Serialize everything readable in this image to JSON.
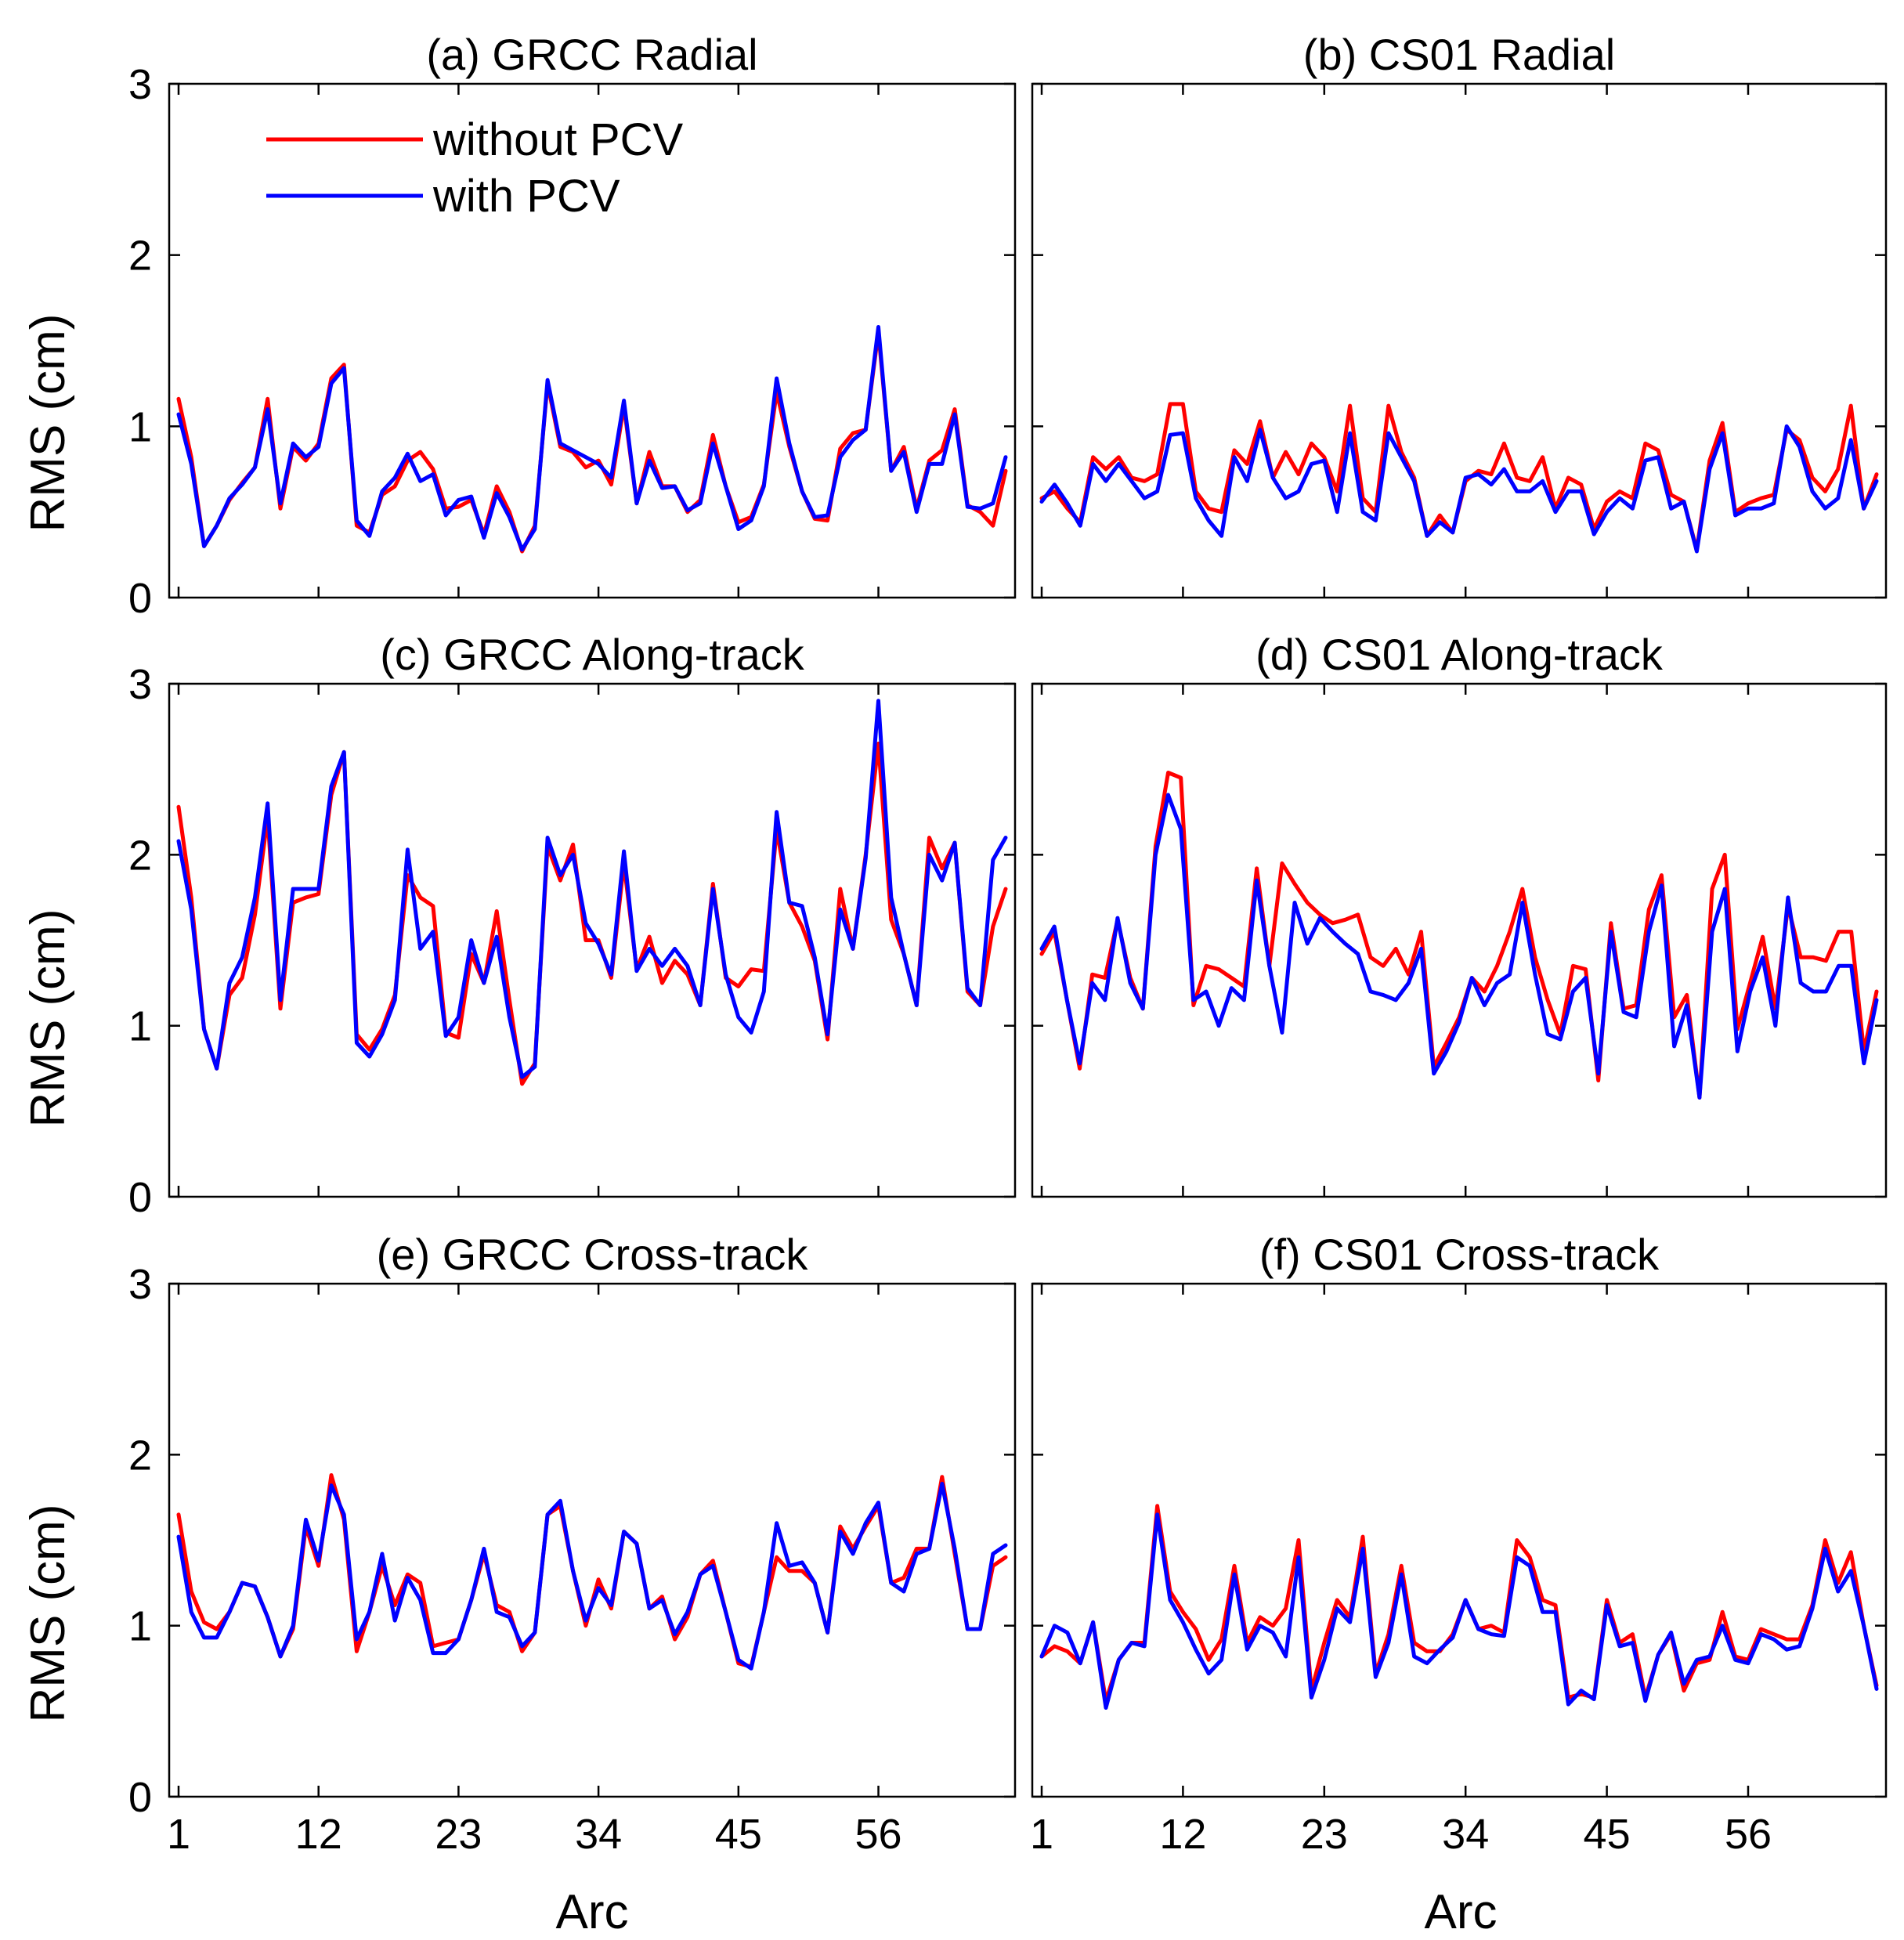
{
  "legend": {
    "entries": [
      "without PCV",
      "with PCV"
    ]
  },
  "colors": {
    "without": "#ff0000",
    "with": "#0000ff"
  },
  "chart_data": [
    {
      "type": "line",
      "id": "a",
      "title": "(a) GRCC Radial",
      "xlabel": "",
      "ylabel": "RMS (cm)",
      "ylim": [
        0,
        3
      ],
      "xlim": [
        1,
        66
      ],
      "yticks": [
        "0",
        "1",
        "2",
        "3"
      ],
      "xticks": [
        "",
        "",
        "",
        "",
        "",
        ""
      ],
      "series": [
        {
          "name": "without PCV",
          "values": [
            1.16,
            0.82,
            0.3,
            0.42,
            0.57,
            0.67,
            0.76,
            1.16,
            0.52,
            0.88,
            0.8,
            0.9,
            1.28,
            1.36,
            0.42,
            0.38,
            0.6,
            0.65,
            0.8,
            0.85,
            0.75,
            0.52,
            0.53,
            0.57,
            0.37,
            0.65,
            0.5,
            0.27,
            0.42,
            1.25,
            0.88,
            0.85,
            0.76,
            0.8,
            0.66,
            1.12,
            0.55,
            0.85,
            0.65,
            0.65,
            0.5,
            0.57,
            0.95,
            0.65,
            0.44,
            0.47,
            0.66,
            1.2,
            0.88,
            0.62,
            0.46,
            0.45,
            0.87,
            0.96,
            0.98,
            1.55,
            0.74,
            0.88,
            0.52,
            0.8,
            0.86,
            1.1,
            0.54,
            0.5,
            0.42,
            0.74
          ]
        },
        {
          "name": "with PCV",
          "values": [
            1.07,
            0.78,
            0.3,
            0.42,
            0.58,
            0.66,
            0.76,
            1.1,
            0.55,
            0.9,
            0.82,
            0.88,
            1.25,
            1.34,
            0.45,
            0.36,
            0.62,
            0.7,
            0.84,
            0.68,
            0.72,
            0.48,
            0.57,
            0.59,
            0.35,
            0.61,
            0.47,
            0.28,
            0.4,
            1.27,
            0.9,
            0.86,
            0.82,
            0.78,
            0.7,
            1.15,
            0.55,
            0.8,
            0.64,
            0.65,
            0.51,
            0.55,
            0.9,
            0.65,
            0.4,
            0.45,
            0.65,
            1.28,
            0.9,
            0.62,
            0.47,
            0.48,
            0.82,
            0.92,
            0.98,
            1.58,
            0.74,
            0.85,
            0.5,
            0.78,
            0.78,
            1.07,
            0.53,
            0.52,
            0.55,
            0.82
          ]
        }
      ]
    },
    {
      "type": "line",
      "id": "b",
      "title": "(b) CS01 Radial",
      "xlabel": "",
      "ylabel": "",
      "ylim": [
        0,
        3
      ],
      "xlim": [
        1,
        66
      ],
      "yticks": [
        "",
        "",
        "",
        ""
      ],
      "xticks": [
        "",
        "",
        "",
        "",
        "",
        ""
      ],
      "series": [
        {
          "name": "without PCV",
          "values": [
            0.58,
            0.62,
            0.52,
            0.44,
            0.82,
            0.75,
            0.82,
            0.7,
            0.68,
            0.72,
            1.13,
            1.13,
            0.62,
            0.52,
            0.5,
            0.86,
            0.78,
            1.03,
            0.7,
            0.85,
            0.72,
            0.9,
            0.82,
            0.62,
            1.12,
            0.58,
            0.5,
            1.12,
            0.85,
            0.7,
            0.36,
            0.48,
            0.38,
            0.68,
            0.74,
            0.72,
            0.9,
            0.7,
            0.68,
            0.82,
            0.52,
            0.7,
            0.66,
            0.4,
            0.56,
            0.62,
            0.58,
            0.9,
            0.86,
            0.6,
            0.56,
            0.28,
            0.8,
            1.02,
            0.5,
            0.55,
            0.58,
            0.6,
            0.98,
            0.92,
            0.7,
            0.62,
            0.75,
            1.12,
            0.52,
            0.72
          ]
        },
        {
          "name": "with PCV",
          "values": [
            0.56,
            0.66,
            0.55,
            0.42,
            0.78,
            0.68,
            0.78,
            0.68,
            0.58,
            0.62,
            0.95,
            0.96,
            0.58,
            0.45,
            0.36,
            0.82,
            0.68,
            0.98,
            0.7,
            0.58,
            0.62,
            0.78,
            0.8,
            0.5,
            0.96,
            0.5,
            0.45,
            0.96,
            0.82,
            0.68,
            0.36,
            0.44,
            0.38,
            0.7,
            0.72,
            0.66,
            0.75,
            0.62,
            0.62,
            0.68,
            0.5,
            0.62,
            0.62,
            0.37,
            0.5,
            0.58,
            0.52,
            0.8,
            0.82,
            0.52,
            0.56,
            0.27,
            0.75,
            0.96,
            0.48,
            0.52,
            0.52,
            0.55,
            1.0,
            0.88,
            0.62,
            0.52,
            0.58,
            0.92,
            0.52,
            0.68
          ]
        }
      ]
    },
    {
      "type": "line",
      "id": "c",
      "title": "(c) GRCC Along-track",
      "xlabel": "",
      "ylabel": "RMS (cm)",
      "ylim": [
        0,
        3
      ],
      "xlim": [
        1,
        66
      ],
      "yticks": [
        "0",
        "1",
        "2",
        "3"
      ],
      "xticks": [
        "",
        "",
        "",
        "",
        "",
        ""
      ],
      "series": [
        {
          "name": "without PCV",
          "values": [
            2.28,
            1.75,
            0.98,
            0.75,
            1.18,
            1.28,
            1.65,
            2.22,
            1.1,
            1.72,
            1.75,
            1.77,
            2.35,
            2.6,
            0.95,
            0.86,
            0.98,
            1.18,
            1.88,
            1.75,
            1.7,
            0.96,
            0.93,
            1.42,
            1.25,
            1.67,
            1.15,
            0.66,
            0.78,
            2.05,
            1.85,
            2.06,
            1.5,
            1.5,
            1.28,
            1.95,
            1.33,
            1.52,
            1.25,
            1.38,
            1.3,
            1.12,
            1.83,
            1.28,
            1.23,
            1.33,
            1.32,
            2.15,
            1.72,
            1.58,
            1.38,
            0.92,
            1.8,
            1.45,
            2.0,
            2.65,
            1.62,
            1.42,
            1.12,
            2.1,
            1.92,
            2.07,
            1.2,
            1.12,
            1.58,
            1.8
          ]
        },
        {
          "name": "with PCV",
          "values": [
            2.08,
            1.68,
            0.98,
            0.75,
            1.25,
            1.4,
            1.75,
            2.3,
            1.15,
            1.8,
            1.8,
            1.8,
            2.4,
            2.6,
            0.9,
            0.82,
            0.95,
            1.15,
            2.03,
            1.45,
            1.55,
            0.94,
            1.05,
            1.5,
            1.25,
            1.52,
            1.05,
            0.7,
            0.76,
            2.1,
            1.88,
            2.0,
            1.6,
            1.48,
            1.3,
            2.02,
            1.32,
            1.45,
            1.35,
            1.45,
            1.35,
            1.12,
            1.8,
            1.3,
            1.05,
            0.96,
            1.2,
            2.25,
            1.72,
            1.7,
            1.4,
            0.95,
            1.68,
            1.45,
            1.98,
            2.9,
            1.75,
            1.42,
            1.12,
            2.0,
            1.85,
            2.07,
            1.22,
            1.12,
            1.97,
            2.1
          ]
        }
      ]
    },
    {
      "type": "line",
      "id": "d",
      "title": "(d) CS01 Along-track",
      "xlabel": "",
      "ylabel": "",
      "ylim": [
        0,
        3
      ],
      "xlim": [
        1,
        66
      ],
      "yticks": [
        "",
        "",
        "",
        ""
      ],
      "xticks": [
        "",
        "",
        "",
        "",
        "",
        ""
      ],
      "series": [
        {
          "name": "without PCV",
          "values": [
            1.42,
            1.55,
            1.15,
            0.75,
            1.3,
            1.28,
            1.62,
            1.28,
            1.1,
            2.05,
            2.48,
            2.45,
            1.12,
            1.35,
            1.33,
            1.28,
            1.23,
            1.92,
            1.35,
            1.95,
            1.83,
            1.72,
            1.65,
            1.6,
            1.62,
            1.65,
            1.4,
            1.35,
            1.45,
            1.3,
            1.55,
            0.76,
            0.9,
            1.05,
            1.28,
            1.2,
            1.35,
            1.55,
            1.8,
            1.4,
            1.15,
            0.95,
            1.35,
            1.33,
            0.68,
            1.6,
            1.1,
            1.12,
            1.68,
            1.88,
            1.05,
            1.18,
            0.58,
            1.8,
            2.0,
            0.98,
            1.25,
            1.52,
            1.1,
            1.7,
            1.4,
            1.4,
            1.38,
            1.55,
            1.55,
            0.85,
            1.2
          ]
        },
        {
          "name": "with PCV",
          "values": [
            1.45,
            1.58,
            1.15,
            0.78,
            1.25,
            1.15,
            1.63,
            1.25,
            1.1,
            2.0,
            2.35,
            2.15,
            1.15,
            1.2,
            1.0,
            1.22,
            1.15,
            1.85,
            1.35,
            0.96,
            1.72,
            1.48,
            1.63,
            1.55,
            1.48,
            1.42,
            1.2,
            1.18,
            1.15,
            1.25,
            1.45,
            0.72,
            0.85,
            1.02,
            1.28,
            1.12,
            1.25,
            1.3,
            1.72,
            1.3,
            0.95,
            0.92,
            1.2,
            1.28,
            0.72,
            1.55,
            1.08,
            1.05,
            1.55,
            1.82,
            0.88,
            1.12,
            0.58,
            1.55,
            1.8,
            0.85,
            1.2,
            1.4,
            1.0,
            1.75,
            1.25,
            1.2,
            1.2,
            1.35,
            1.35,
            0.78,
            1.15
          ]
        }
      ]
    },
    {
      "type": "line",
      "id": "e",
      "title": "(e) GRCC Cross-track",
      "xlabel": "Arc",
      "ylabel": "RMS (cm)",
      "ylim": [
        0,
        3
      ],
      "xlim": [
        1,
        66
      ],
      "yticks": [
        "0",
        "1",
        "2",
        "3"
      ],
      "xticks": [
        "1",
        "12",
        "23",
        "34",
        "45",
        "56"
      ],
      "series": [
        {
          "name": "without PCV",
          "values": [
            1.65,
            1.2,
            1.02,
            0.98,
            1.08,
            1.25,
            1.23,
            1.05,
            0.82,
            0.98,
            1.58,
            1.35,
            1.88,
            1.62,
            0.85,
            1.08,
            1.35,
            1.12,
            1.3,
            1.25,
            0.88,
            0.9,
            0.92,
            1.15,
            1.42,
            1.12,
            1.08,
            0.85,
            0.96,
            1.65,
            1.7,
            1.32,
            1.0,
            1.27,
            1.1,
            1.55,
            1.48,
            1.1,
            1.17,
            0.92,
            1.05,
            1.3,
            1.38,
            1.08,
            0.78,
            0.76,
            1.08,
            1.4,
            1.32,
            1.32,
            1.25,
            0.96,
            1.58,
            1.45,
            1.58,
            1.7,
            1.25,
            1.28,
            1.45,
            1.45,
            1.87,
            1.42,
            0.98,
            0.98,
            1.35,
            1.4
          ]
        },
        {
          "name": "with PCV",
          "values": [
            1.52,
            1.08,
            0.93,
            0.93,
            1.08,
            1.25,
            1.23,
            1.05,
            0.82,
            1.0,
            1.62,
            1.38,
            1.82,
            1.65,
            0.92,
            1.08,
            1.42,
            1.03,
            1.28,
            1.15,
            0.84,
            0.84,
            0.92,
            1.15,
            1.45,
            1.08,
            1.05,
            0.88,
            0.96,
            1.65,
            1.73,
            1.32,
            1.03,
            1.22,
            1.12,
            1.55,
            1.48,
            1.1,
            1.15,
            0.95,
            1.08,
            1.3,
            1.35,
            1.08,
            0.8,
            0.75,
            1.08,
            1.6,
            1.35,
            1.37,
            1.25,
            0.96,
            1.55,
            1.42,
            1.6,
            1.72,
            1.25,
            1.2,
            1.42,
            1.45,
            1.83,
            1.45,
            0.98,
            0.98,
            1.42,
            1.47
          ]
        }
      ]
    },
    {
      "type": "line",
      "id": "f",
      "title": "(f) CS01 Cross-track",
      "xlabel": "Arc",
      "ylabel": "",
      "ylim": [
        0,
        3
      ],
      "xlim": [
        1,
        66
      ],
      "yticks": [
        "",
        "",
        "",
        ""
      ],
      "xticks": [
        "1",
        "12",
        "23",
        "34",
        "45",
        "56"
      ],
      "series": [
        {
          "name": "without PCV",
          "values": [
            0.82,
            0.88,
            0.85,
            0.78,
            1.02,
            0.56,
            0.8,
            0.9,
            0.9,
            1.7,
            1.2,
            1.08,
            0.98,
            0.8,
            0.92,
            1.35,
            0.9,
            1.05,
            1.0,
            1.1,
            1.5,
            0.62,
            0.9,
            1.15,
            1.05,
            1.52,
            0.72,
            0.95,
            1.35,
            0.9,
            0.85,
            0.85,
            0.95,
            1.15,
            0.98,
            1.0,
            0.96,
            1.5,
            1.4,
            1.15,
            1.12,
            0.58,
            0.6,
            0.58,
            1.15,
            0.9,
            0.95,
            0.58,
            0.83,
            0.95,
            0.62,
            0.78,
            0.8,
            1.08,
            0.82,
            0.8,
            0.98,
            0.95,
            0.92,
            0.92,
            1.12,
            1.5,
            1.25,
            1.43,
            1.0,
            0.65
          ]
        },
        {
          "name": "with PCV",
          "values": [
            0.82,
            1.0,
            0.96,
            0.78,
            1.02,
            0.52,
            0.8,
            0.9,
            0.88,
            1.65,
            1.15,
            1.02,
            0.86,
            0.72,
            0.8,
            1.3,
            0.86,
            1.0,
            0.96,
            0.82,
            1.4,
            0.58,
            0.8,
            1.1,
            1.02,
            1.45,
            0.7,
            0.9,
            1.3,
            0.82,
            0.78,
            0.86,
            0.93,
            1.15,
            0.98,
            0.95,
            0.94,
            1.4,
            1.35,
            1.08,
            1.08,
            0.54,
            0.62,
            0.57,
            1.12,
            0.88,
            0.9,
            0.56,
            0.83,
            0.96,
            0.66,
            0.8,
            0.82,
            1.0,
            0.8,
            0.78,
            0.95,
            0.92,
            0.86,
            0.88,
            1.1,
            1.45,
            1.2,
            1.32,
            1.0,
            0.63
          ]
        }
      ]
    }
  ]
}
